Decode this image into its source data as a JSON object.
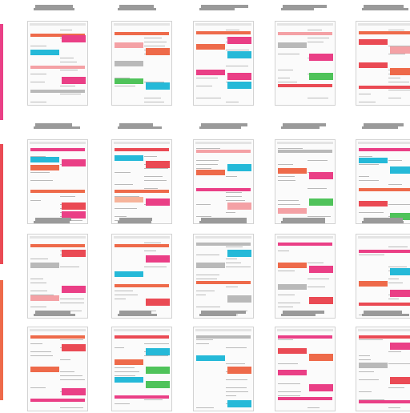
{
  "palette": {
    "coral": "#ee6a4a",
    "pink": "#ea3f86",
    "cyan": "#25b9d8",
    "green": "#4fc35a",
    "red": "#ea4a54",
    "gray": "#b9b9b9",
    "lightred": "#f4a1a5",
    "lightcoral": "#f6b49b"
  },
  "rows": [
    {
      "cells": [
        {
          "blocks": [
            [
              "coral",
              0,
              "f",
              0.08
            ],
            [
              "pink",
              1,
              "r",
              0.1
            ],
            [
              "cyan",
              0,
              "l",
              0.3
            ],
            [
              "lightred",
              0,
              "f",
              0.52
            ],
            [
              "pink",
              1,
              "r",
              0.68
            ],
            [
              "gray",
              0,
              "f",
              0.85
            ]
          ]
        },
        {
          "blocks": [
            [
              "coral",
              0,
              "f",
              0.06
            ],
            [
              "lightred",
              0,
              "l",
              0.2
            ],
            [
              "coral",
              1,
              "r",
              0.28
            ],
            [
              "gray",
              0,
              "l",
              0.45
            ],
            [
              "green",
              0,
              "l",
              0.7
            ],
            [
              "cyan",
              1,
              "r",
              0.75
            ]
          ]
        },
        {
          "blocks": [
            [
              "coral",
              0,
              "f",
              0.04
            ],
            [
              "pink",
              1,
              "r",
              0.12
            ],
            [
              "coral",
              0,
              "l",
              0.22
            ],
            [
              "cyan",
              1,
              "r",
              0.32
            ],
            [
              "pink",
              0,
              "l",
              0.58
            ],
            [
              "pink",
              1,
              "r",
              0.62
            ],
            [
              "cyan",
              1,
              "r",
              0.74
            ]
          ]
        },
        {
          "blocks": [
            [
              "lightred",
              0,
              "f",
              0.05
            ],
            [
              "gray",
              0,
              "l",
              0.2
            ],
            [
              "pink",
              1,
              "r",
              0.35
            ],
            [
              "green",
              1,
              "r",
              0.62
            ],
            [
              "red",
              0,
              "f",
              0.78
            ]
          ]
        },
        {
          "blocks": [
            [
              "coral",
              0,
              "f",
              0.04
            ],
            [
              "red",
              0,
              "l",
              0.15
            ],
            [
              "lightred",
              1,
              "r",
              0.25
            ],
            [
              "red",
              0,
              "l",
              0.48
            ],
            [
              "coral",
              1,
              "r",
              0.55
            ],
            [
              "red",
              0,
              "f",
              0.8
            ]
          ]
        }
      ]
    },
    {
      "cells": [
        {
          "blocks": [
            [
              "pink",
              0,
              "f",
              0.02
            ],
            [
              "cyan",
              0,
              "l",
              0.14
            ],
            [
              "pink",
              1,
              "r",
              0.18
            ],
            [
              "coral",
              0,
              "l",
              0.26
            ],
            [
              "coral",
              0,
              "f",
              0.6
            ],
            [
              "red",
              1,
              "r",
              0.78
            ],
            [
              "pink",
              1,
              "r",
              0.9
            ]
          ]
        },
        {
          "blocks": [
            [
              "red",
              0,
              "f",
              0.02
            ],
            [
              "cyan",
              0,
              "l",
              0.12
            ],
            [
              "red",
              1,
              "r",
              0.2
            ],
            [
              "coral",
              0,
              "f",
              0.6
            ],
            [
              "lightcoral",
              0,
              "l",
              0.7
            ],
            [
              "pink",
              1,
              "r",
              0.72
            ]
          ]
        },
        {
          "blocks": [
            [
              "lightred",
              0,
              "f",
              0.04
            ],
            [
              "cyan",
              1,
              "r",
              0.24
            ],
            [
              "coral",
              0,
              "l",
              0.32
            ],
            [
              "pink",
              0,
              "f",
              0.58
            ],
            [
              "lightred",
              1,
              "r",
              0.78
            ]
          ]
        },
        {
          "blocks": [
            [
              "gray",
              0,
              "f",
              0.04
            ],
            [
              "coral",
              0,
              "l",
              0.3
            ],
            [
              "pink",
              1,
              "r",
              0.35
            ],
            [
              "green",
              1,
              "r",
              0.72
            ],
            [
              "lightred",
              0,
              "l",
              0.85
            ]
          ]
        },
        {
          "blocks": [
            [
              "pink",
              0,
              "f",
              0.02
            ],
            [
              "cyan",
              0,
              "l",
              0.16
            ],
            [
              "cyan",
              1,
              "r",
              0.28
            ],
            [
              "coral",
              0,
              "f",
              0.58
            ],
            [
              "red",
              0,
              "l",
              0.75
            ],
            [
              "green",
              1,
              "r",
              0.92
            ]
          ]
        }
      ]
    },
    {
      "cells": [
        {
          "blocks": [
            [
              "coral",
              0,
              "f",
              0.04
            ],
            [
              "red",
              1,
              "r",
              0.12
            ],
            [
              "gray",
              0,
              "l",
              0.3
            ],
            [
              "pink",
              1,
              "r",
              0.62
            ],
            [
              "lightred",
              0,
              "l",
              0.75
            ]
          ]
        },
        {
          "blocks": [
            [
              "coral",
              0,
              "f",
              0.04
            ],
            [
              "pink",
              1,
              "r",
              0.2
            ],
            [
              "cyan",
              0,
              "l",
              0.42
            ],
            [
              "coral",
              0,
              "f",
              0.6
            ],
            [
              "red",
              1,
              "r",
              0.8
            ]
          ]
        },
        {
          "blocks": [
            [
              "gray",
              0,
              "f",
              0.02
            ],
            [
              "cyan",
              1,
              "r",
              0.12
            ],
            [
              "gray",
              0,
              "l",
              0.3
            ],
            [
              "coral",
              0,
              "f",
              0.55
            ],
            [
              "gray",
              1,
              "r",
              0.75
            ]
          ]
        },
        {
          "blocks": [
            [
              "pink",
              0,
              "f",
              0.02
            ],
            [
              "coral",
              0,
              "l",
              0.3
            ],
            [
              "pink",
              1,
              "r",
              0.34
            ],
            [
              "gray",
              0,
              "l",
              0.6
            ],
            [
              "red",
              1,
              "r",
              0.78
            ]
          ]
        },
        {
          "blocks": [
            [
              "pink",
              0,
              "f",
              0.12
            ],
            [
              "cyan",
              1,
              "r",
              0.38
            ],
            [
              "coral",
              0,
              "l",
              0.55
            ],
            [
              "pink",
              1,
              "r",
              0.68
            ],
            [
              "red",
              0,
              "f",
              0.86
            ]
          ]
        }
      ]
    },
    {
      "cells": [
        {
          "blocks": [
            [
              "coral",
              0,
              "f",
              0.02
            ],
            [
              "red",
              1,
              "r",
              0.14
            ],
            [
              "coral",
              0,
              "l",
              0.45
            ],
            [
              "pink",
              1,
              "r",
              0.75
            ],
            [
              "pink",
              0,
              "f",
              0.9
            ]
          ]
        },
        {
          "blocks": [
            [
              "red",
              0,
              "f",
              0.02
            ],
            [
              "cyan",
              1,
              "r",
              0.2
            ],
            [
              "coral",
              0,
              "l",
              0.35
            ],
            [
              "green",
              1,
              "r",
              0.45
            ],
            [
              "cyan",
              0,
              "l",
              0.6
            ],
            [
              "green",
              1,
              "r",
              0.65
            ],
            [
              "pink",
              0,
              "f",
              0.85
            ]
          ]
        },
        {
          "blocks": [
            [
              "gray",
              0,
              "f",
              0.02
            ],
            [
              "cyan",
              0,
              "l",
              0.3
            ],
            [
              "coral",
              1,
              "r",
              0.45
            ],
            [
              "cyan",
              1,
              "r",
              0.92
            ]
          ]
        },
        {
          "blocks": [
            [
              "pink",
              0,
              "f",
              0.02
            ],
            [
              "red",
              0,
              "l",
              0.2
            ],
            [
              "coral",
              1,
              "r",
              0.28
            ],
            [
              "pink",
              0,
              "l",
              0.5
            ],
            [
              "pink",
              1,
              "r",
              0.7
            ],
            [
              "pink",
              0,
              "f",
              0.88
            ]
          ]
        },
        {
          "blocks": [
            [
              "red",
              0,
              "f",
              0.02
            ],
            [
              "pink",
              1,
              "r",
              0.12
            ],
            [
              "gray",
              0,
              "l",
              0.4
            ],
            [
              "red",
              1,
              "r",
              0.6
            ],
            [
              "pink",
              0,
              "f",
              0.92
            ]
          ]
        }
      ]
    }
  ]
}
